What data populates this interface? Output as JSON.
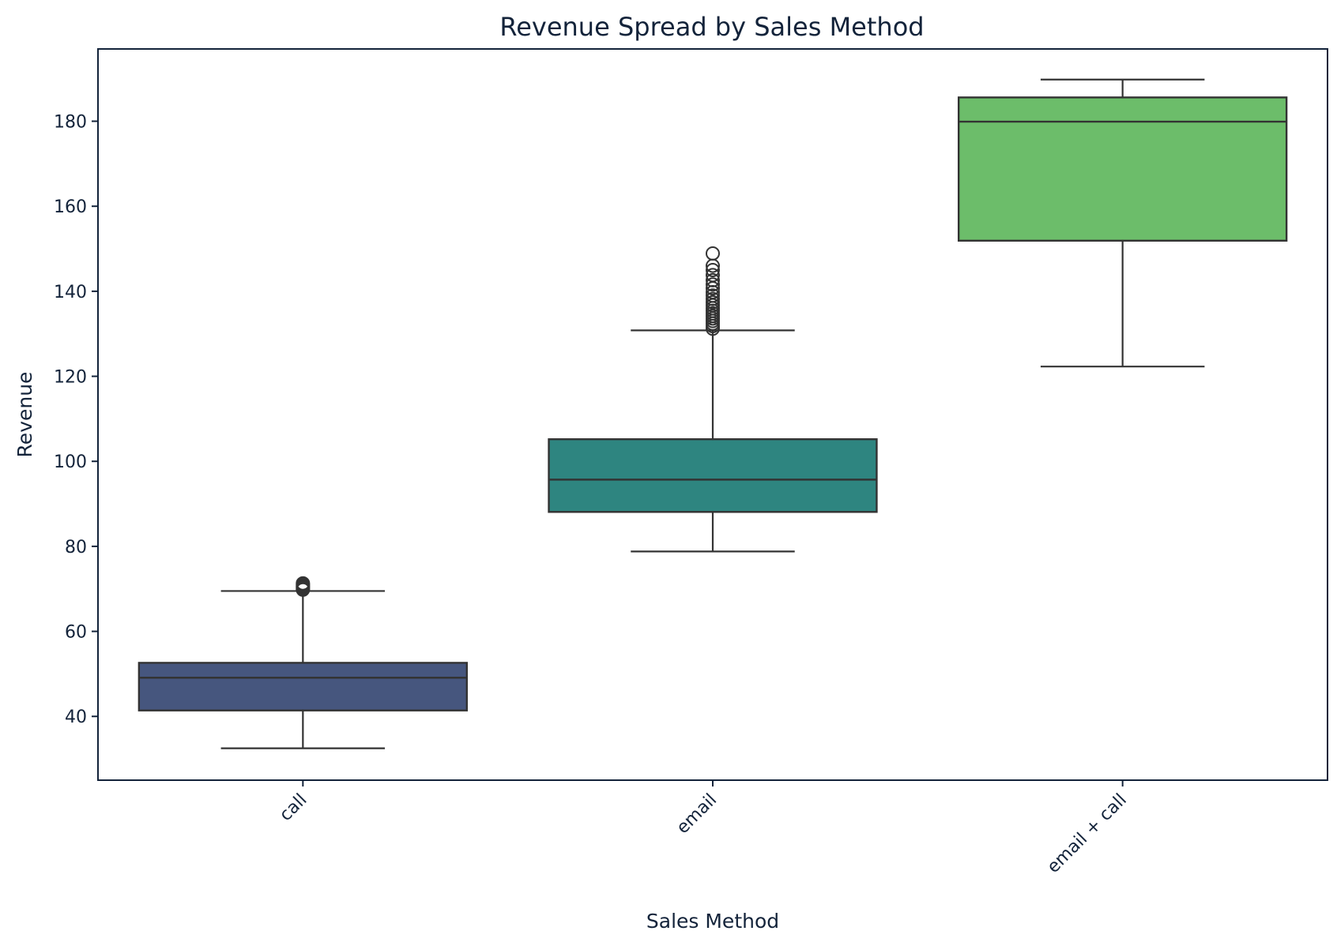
{
  "chart_data": {
    "type": "box",
    "title": "Revenue Spread by Sales Method",
    "xlabel": "Sales Method",
    "ylabel": "Revenue",
    "ylim": [
      25,
      197
    ],
    "yticks": [
      40,
      60,
      80,
      100,
      120,
      140,
      160,
      180
    ],
    "grid": false,
    "categories": [
      "call",
      "email",
      "email + call"
    ],
    "boxes": [
      {
        "category": "call",
        "color": "#46567e",
        "whisker_low": 32.5,
        "q1": 41.4,
        "median": 49.1,
        "q3": 52.6,
        "whisker_high": 69.5,
        "outliers": [
          69.8,
          70.1,
          70.4,
          70.7,
          71.0,
          71.3
        ]
      },
      {
        "category": "email",
        "color": "#2e8580",
        "whisker_low": 78.8,
        "q1": 88.1,
        "median": 95.7,
        "q3": 105.2,
        "whisker_high": 130.8,
        "outliers": [
          131.2,
          131.8,
          132.4,
          133.0,
          133.6,
          134.2,
          134.8,
          135.4,
          136.0,
          136.7,
          137.4,
          138.2,
          139.0,
          139.8,
          140.7,
          141.6,
          142.6,
          143.8,
          145.0,
          146.0,
          148.9
        ]
      },
      {
        "category": "email + call",
        "color": "#6cbd6a",
        "whisker_low": 122.3,
        "q1": 151.9,
        "median": 179.9,
        "q3": 185.6,
        "whisker_high": 189.8,
        "outliers": []
      }
    ]
  }
}
